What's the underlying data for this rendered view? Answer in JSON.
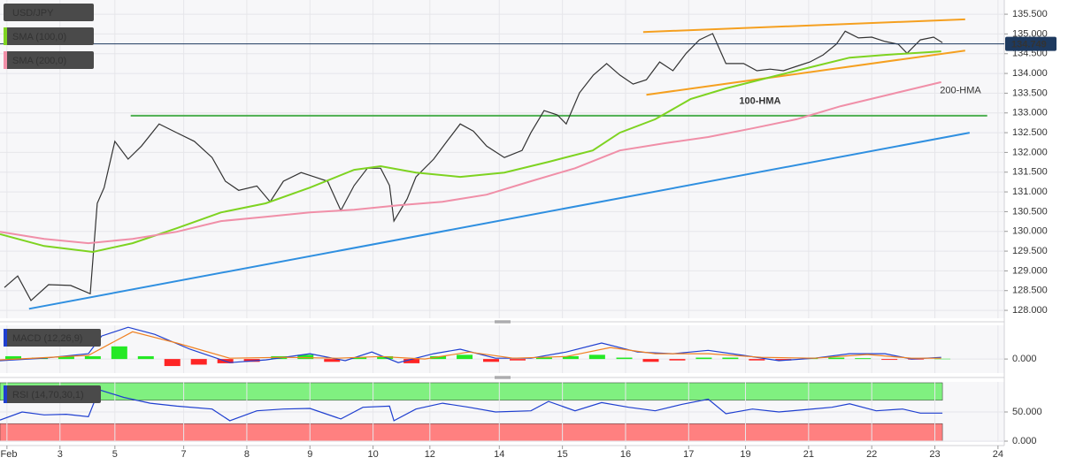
{
  "chart_data": [
    {
      "type": "line",
      "title": "USD/JPY",
      "xlim": [
        -0.11,
        15.8
      ],
      "ylim": [
        127.8,
        135.86
      ],
      "yticks": [
        {
          "value": 128,
          "label": "128.000"
        },
        {
          "value": 128.5,
          "label": "128.500"
        },
        {
          "value": 129,
          "label": "129.000"
        },
        {
          "value": 129.5,
          "label": "129.500"
        },
        {
          "value": 130,
          "label": "130.000"
        },
        {
          "value": 130.5,
          "label": "130.500"
        },
        {
          "value": 131,
          "label": "131.000"
        },
        {
          "value": 131.5,
          "label": "131.500"
        },
        {
          "value": 132,
          "label": "132.000"
        },
        {
          "value": 132.5,
          "label": "132.500"
        },
        {
          "value": 133,
          "label": "133.000"
        },
        {
          "value": 133.5,
          "label": "133.500"
        },
        {
          "value": 134,
          "label": "134.000"
        },
        {
          "value": 134.5,
          "label": "134.500"
        },
        {
          "value": 135,
          "label": "135.000"
        },
        {
          "value": 135.5,
          "label": "135.500"
        }
      ],
      "grid": true,
      "current_price": {
        "value": 134.749,
        "label": "134.749",
        "color": "#1e3a5f"
      },
      "series": [
        {
          "name": "USD/JPY",
          "color": "#333333",
          "x": [
            -0.04,
            0.17,
            0.38,
            0.66,
            1.01,
            1.32,
            1.43,
            1.54,
            1.71,
            1.92,
            2.13,
            2.41,
            2.69,
            2.97,
            3.25,
            3.46,
            3.67,
            3.96,
            4.17,
            4.38,
            4.66,
            4.87,
            5.08,
            5.29,
            5.5,
            5.71,
            5.92,
            6.06,
            6.13,
            6.34,
            6.48,
            6.76,
            6.97,
            7.18,
            7.39,
            7.6,
            7.88,
            8.16,
            8.3,
            8.51,
            8.72,
            8.86,
            9.07,
            9.29,
            9.5,
            9.71,
            9.92,
            10.13,
            10.34,
            10.55,
            10.76,
            10.97,
            11.18,
            11.39,
            11.67,
            11.88,
            12.09,
            12.3,
            12.51,
            12.72,
            12.93,
            13.14,
            13.28,
            13.49,
            13.7,
            13.91,
            14.12,
            14.26,
            14.47,
            14.68,
            14.82
          ],
          "values": [
            128.58,
            128.87,
            128.25,
            128.65,
            128.63,
            128.42,
            130.71,
            131.11,
            132.28,
            131.83,
            132.16,
            132.72,
            132.5,
            132.28,
            131.87,
            131.27,
            131.04,
            131.15,
            130.75,
            131.27,
            131.49,
            131.38,
            131.27,
            130.53,
            131.16,
            131.6,
            131.6,
            131.16,
            130.26,
            130.82,
            131.38,
            131.83,
            132.28,
            132.72,
            132.54,
            132.16,
            131.87,
            132.05,
            132.5,
            133.06,
            132.95,
            132.72,
            133.51,
            133.96,
            134.25,
            133.96,
            133.73,
            133.84,
            134.29,
            134.07,
            134.51,
            134.85,
            135.01,
            134.25,
            134.25,
            134.07,
            134.11,
            134.07,
            134.18,
            134.29,
            134.47,
            134.74,
            135.07,
            134.9,
            134.92,
            134.81,
            134.74,
            134.51,
            134.85,
            134.92,
            134.78
          ]
        },
        {
          "name": "SMA (100,0)",
          "color": "#7ed321",
          "x": [
            -0.11,
            0.59,
            1.36,
            1.99,
            2.69,
            3.39,
            4.1,
            4.8,
            5.5,
            5.92,
            6.48,
            7.18,
            7.88,
            8.58,
            9.28,
            9.71,
            10.27,
            10.83,
            11.39,
            12.23,
            12.79,
            13.35,
            13.91,
            14.8
          ],
          "values": [
            129.93,
            129.63,
            129.48,
            129.7,
            130.08,
            130.48,
            130.71,
            131.11,
            131.56,
            131.65,
            131.49,
            131.38,
            131.49,
            131.76,
            132.05,
            132.5,
            132.84,
            133.35,
            133.62,
            133.96,
            134.18,
            134.4,
            134.47,
            134.56
          ]
        },
        {
          "name": "SMA (200,0)",
          "color": "#f08fa8",
          "x": [
            -0.11,
            0.59,
            1.29,
            1.99,
            2.69,
            3.39,
            4.1,
            4.8,
            5.5,
            6.2,
            6.9,
            7.6,
            8.3,
            9.0,
            9.71,
            10.41,
            11.11,
            11.81,
            12.51,
            13.21,
            13.91,
            14.8
          ],
          "values": [
            129.99,
            129.81,
            129.7,
            129.81,
            129.99,
            130.26,
            130.37,
            130.48,
            130.55,
            130.66,
            130.75,
            130.93,
            131.27,
            131.6,
            132.05,
            132.23,
            132.39,
            132.61,
            132.84,
            133.17,
            133.44,
            133.78
          ]
        }
      ],
      "trendlines": [
        {
          "color": "#4caf50",
          "x": [
            1.96,
            15.53
          ],
          "values": [
            132.93,
            132.93
          ]
        },
        {
          "color": "#2f8fe0",
          "x": [
            0.35,
            15.25
          ],
          "values": [
            128.04,
            132.5
          ]
        },
        {
          "color": "#f5a020",
          "x": [
            10.08,
            15.18
          ],
          "values": [
            135.05,
            135.37
          ]
        },
        {
          "color": "#f5a020",
          "x": [
            10.13,
            15.18
          ],
          "values": [
            133.46,
            134.58
          ]
        }
      ],
      "annotations": [
        {
          "text": "100-HMA",
          "x": 11.6,
          "y": 133.29,
          "color": "#7ed321"
        },
        {
          "text": "200-HMA",
          "x": 14.78,
          "y": 133.56,
          "color": "#f08fa8"
        }
      ]
    },
    {
      "type": "line",
      "title": "MACD (12,26,9)",
      "xlim": [
        -0.11,
        15.8
      ],
      "ylim": [
        -0.5,
        1.2
      ],
      "yticks": [
        {
          "value": 0,
          "label": "0.000"
        }
      ],
      "histogram": {
        "up_color": "#00e600",
        "down_color": "#ff0000",
        "x": [
          0.1,
          0.52,
          0.94,
          1.36,
          1.78,
          2.2,
          2.62,
          3.04,
          3.46,
          3.88,
          4.31,
          4.73,
          5.15,
          5.57,
          5.99,
          6.41,
          6.83,
          7.25,
          7.67,
          8.09,
          8.51,
          8.93,
          9.35,
          9.78,
          10.2,
          10.62,
          11.04,
          11.46,
          11.88,
          12.3,
          12.72,
          13.14,
          13.56,
          13.98,
          14.4,
          14.82
        ],
        "values": [
          0.1,
          0.05,
          0.1,
          0.1,
          0.45,
          0.1,
          -0.25,
          -0.2,
          -0.15,
          -0.1,
          0.1,
          0.15,
          -0.1,
          0.05,
          0.1,
          -0.15,
          0.1,
          0.15,
          -0.1,
          -0.05,
          0.05,
          0.1,
          0.15,
          0.05,
          -0.1,
          -0.05,
          0.05,
          0.05,
          -0.05,
          -0.05,
          0.05,
          0.05,
          0.03,
          -0.03,
          -0.02,
          0.01
        ]
      },
      "series": [
        {
          "color": "#1f3fd0",
          "x": [
            -0.11,
            0.59,
            1.29,
            1.5,
            1.92,
            2.34,
            2.9,
            3.53,
            4.1,
            4.8,
            5.36,
            5.78,
            6.2,
            6.76,
            7.18,
            7.74,
            8.3,
            8.86,
            9.42,
            9.99,
            10.55,
            11.11,
            11.67,
            12.23,
            12.79,
            13.35,
            13.91,
            14.33,
            14.8
          ],
          "values": [
            -0.06,
            0.03,
            0.19,
            0.82,
            1.13,
            0.88,
            0.35,
            -0.13,
            -0.03,
            0.19,
            -0.06,
            0.25,
            -0.13,
            0.19,
            0.35,
            0.03,
            0.03,
            0.25,
            0.57,
            0.25,
            0.19,
            0.31,
            0.13,
            -0.06,
            0.03,
            0.19,
            0.19,
            0.0,
            0.06
          ]
        },
        {
          "color": "#f08020",
          "x": [
            -0.11,
            1.29,
            1.99,
            2.69,
            3.53,
            4.38,
            5.22,
            5.92,
            6.62,
            7.32,
            8.02,
            8.86,
            9.56,
            10.27,
            11.11,
            11.95,
            12.79,
            13.63,
            14.33,
            14.8
          ],
          "values": [
            -0.03,
            0.13,
            0.97,
            0.57,
            0.03,
            0.06,
            0.03,
            0.09,
            0.0,
            0.25,
            0.03,
            0.09,
            0.41,
            0.19,
            0.19,
            0.06,
            0.03,
            0.16,
            0.03,
            0.03
          ]
        }
      ]
    },
    {
      "type": "line",
      "title": "RSI (14,70,30,1)",
      "xlim": [
        -0.11,
        15.8
      ],
      "ylim": [
        -1.5,
        101.5
      ],
      "yticks": [
        {
          "value": 0,
          "label": "0.000"
        },
        {
          "value": 50,
          "label": "50.000"
        }
      ],
      "bands": [
        {
          "from": 70,
          "to": 100,
          "color": "#80f080"
        },
        {
          "from": 0,
          "to": 30,
          "color": "#ff8080"
        }
      ],
      "band_end": 14.82,
      "xticks": [
        {
          "value": 0,
          "label": "Feb"
        },
        {
          "value": 0.84,
          "label": "3"
        },
        {
          "value": 1.71,
          "label": "5"
        },
        {
          "value": 2.8,
          "label": "7"
        },
        {
          "value": 3.8,
          "label": "8"
        },
        {
          "value": 4.8,
          "label": "9"
        },
        {
          "value": 5.8,
          "label": "10"
        },
        {
          "value": 6.7,
          "label": "12"
        },
        {
          "value": 7.8,
          "label": "14"
        },
        {
          "value": 8.8,
          "label": "15"
        },
        {
          "value": 9.8,
          "label": "16"
        },
        {
          "value": 10.8,
          "label": "17"
        },
        {
          "value": 11.7,
          "label": "19"
        },
        {
          "value": 12.7,
          "label": "21"
        },
        {
          "value": 13.7,
          "label": "22"
        },
        {
          "value": 14.7,
          "label": "23"
        },
        {
          "value": 15.7,
          "label": "24"
        }
      ],
      "series": [
        {
          "color": "#1f3fd0",
          "x": [
            -0.11,
            0.24,
            0.59,
            0.94,
            1.29,
            1.46,
            1.85,
            2.27,
            2.69,
            3.25,
            3.53,
            3.96,
            4.38,
            4.8,
            5.29,
            5.64,
            6.06,
            6.13,
            6.48,
            6.9,
            7.32,
            7.74,
            8.3,
            8.58,
            9.0,
            9.42,
            9.85,
            10.27,
            10.69,
            11.11,
            11.39,
            11.81,
            12.23,
            12.65,
            13.07,
            13.35,
            13.77,
            14.19,
            14.47,
            14.82
          ],
          "values": [
            36,
            50,
            45,
            46,
            42,
            88,
            75,
            65,
            60,
            55,
            35,
            52,
            55,
            56,
            38,
            58,
            60,
            35,
            55,
            65,
            58,
            50,
            52,
            68,
            52,
            66,
            58,
            52,
            63,
            72,
            47,
            55,
            50,
            54,
            58,
            64,
            52,
            55,
            48,
            48
          ]
        }
      ]
    }
  ]
}
